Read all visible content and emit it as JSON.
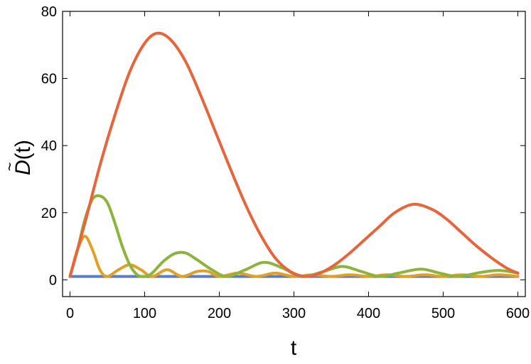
{
  "chart_data": {
    "type": "line",
    "xlabel": "t",
    "ylabel": {
      "symbol": "D",
      "accent": "~",
      "suffix": "(t)"
    },
    "xlim": [
      -10,
      610
    ],
    "ylim": [
      -5,
      80
    ],
    "x_ticks": [
      0,
      100,
      200,
      300,
      400,
      500,
      600
    ],
    "y_ticks": [
      0,
      20,
      40,
      60,
      80
    ],
    "grid": false,
    "series": [
      {
        "color": "#5b7ec2",
        "x": [
          0,
          100,
          200,
          300,
          400,
          500,
          600
        ],
        "y": [
          1,
          1,
          1,
          1,
          1,
          1,
          1
        ]
      },
      {
        "color": "#e1a024",
        "x": [
          0,
          10,
          20,
          30,
          40,
          50,
          65,
          80,
          95,
          110,
          130,
          150,
          170,
          185,
          200,
          225,
          250,
          275,
          300,
          325,
          350,
          375,
          400,
          425,
          450,
          475,
          500,
          525,
          550,
          575,
          600
        ],
        "y": [
          1,
          9,
          13,
          9,
          3,
          1,
          3,
          4.5,
          3,
          1,
          3,
          1,
          2.5,
          2.5,
          1,
          2,
          1,
          2,
          1,
          1.5,
          1,
          1.5,
          1,
          1.5,
          1,
          1.5,
          1,
          1.5,
          1,
          1.5,
          1
        ]
      },
      {
        "color": "#8db43a",
        "x": [
          0,
          10,
          20,
          30,
          40,
          50,
          60,
          70,
          80,
          90,
          100,
          110,
          125,
          140,
          155,
          170,
          190,
          210,
          235,
          260,
          285,
          310,
          340,
          365,
          390,
          415,
          440,
          470,
          495,
          520,
          550,
          575,
          600
        ],
        "y": [
          1,
          9,
          18,
          24,
          25,
          23,
          17,
          10,
          4.5,
          1.5,
          1,
          2,
          5.5,
          7.8,
          8,
          6,
          3,
          1,
          3,
          5.2,
          3.5,
          1,
          2.5,
          4,
          2.5,
          1,
          2,
          3.2,
          2,
          1,
          2.2,
          2.8,
          2
        ]
      },
      {
        "color": "#e8643a",
        "x": [
          0,
          20,
          40,
          60,
          80,
          100,
          117,
          135,
          155,
          175,
          195,
          215,
          235,
          255,
          275,
          295,
          315,
          335,
          355,
          375,
          395,
          415,
          435,
          460,
          485,
          505,
          525,
          545,
          565,
          585,
          600
        ],
        "y": [
          1,
          17,
          34,
          49,
          62,
          70.5,
          73.5,
          71.5,
          65,
          55,
          44,
          33,
          22.5,
          13.5,
          6.5,
          2.5,
          1,
          2,
          4.5,
          8,
          12,
          16,
          20,
          22.5,
          21,
          18,
          14,
          10,
          6.5,
          3.5,
          2
        ]
      }
    ]
  }
}
